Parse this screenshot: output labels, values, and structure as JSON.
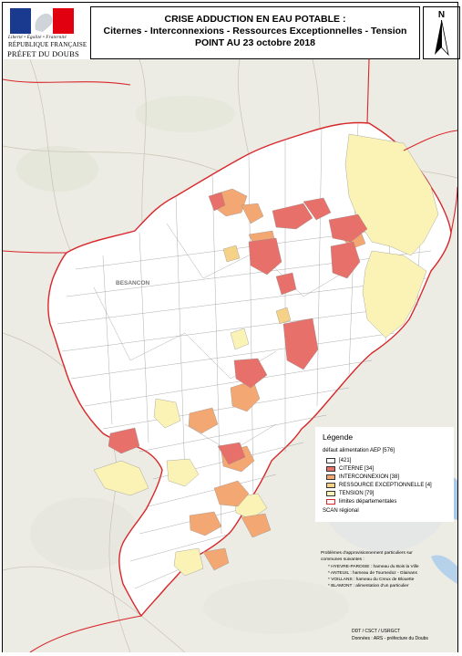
{
  "header": {
    "motto": "Liberté • Égalité • Fraternité",
    "republic": "RÉPUBLIQUE FRANÇAISE",
    "prefet": "PRÉFET DU DOUBS",
    "title_line1": "CRISE ADDUCTION EN EAU POTABLE :",
    "title_line2": "Citernes - Interconnexions  - Ressources Exceptionnelles  - Tension",
    "title_line3": "POINT AU 23 octobre 2018",
    "north": "N"
  },
  "map_labels": {
    "besancon": "BESANCON"
  },
  "legend": {
    "title": "Légende",
    "subtitle": "défaut alimentation AEP [576]",
    "items": [
      {
        "label": "[421]",
        "color": "#ffffff"
      },
      {
        "label": "CITERNE [34]",
        "color": "#e8706a"
      },
      {
        "label": "INTERCONNEXION [38]",
        "color": "#f3a873"
      },
      {
        "label": "RESSOURCE EXCEPTIONNELLE [4]",
        "color": "#f6d288"
      },
      {
        "label": "TENSION [79]",
        "color": "#fbf3b6"
      }
    ],
    "boundary_label": "limites départementales",
    "boundary_color": "#d8272a",
    "scan_label": "SCAN régional"
  },
  "notes": {
    "intro_line1": "Problèmes d'approvisionnement particuliers sur",
    "intro_line2": "communes suivantes :",
    "items": [
      "* HYEVRE-PAROISE : hameau du Bois la Ville",
      "* ANTEUIL : hameau de Tournedoz - Glainans",
      "* VOILLANS : hameau du Creux de Blouette",
      "* BLAMONT : alimentation d'un particulier"
    ]
  },
  "credits": {
    "line1": "DDT / CSCT / USRGCT",
    "line2": "Données : ARS - préfecture du Doubs"
  }
}
